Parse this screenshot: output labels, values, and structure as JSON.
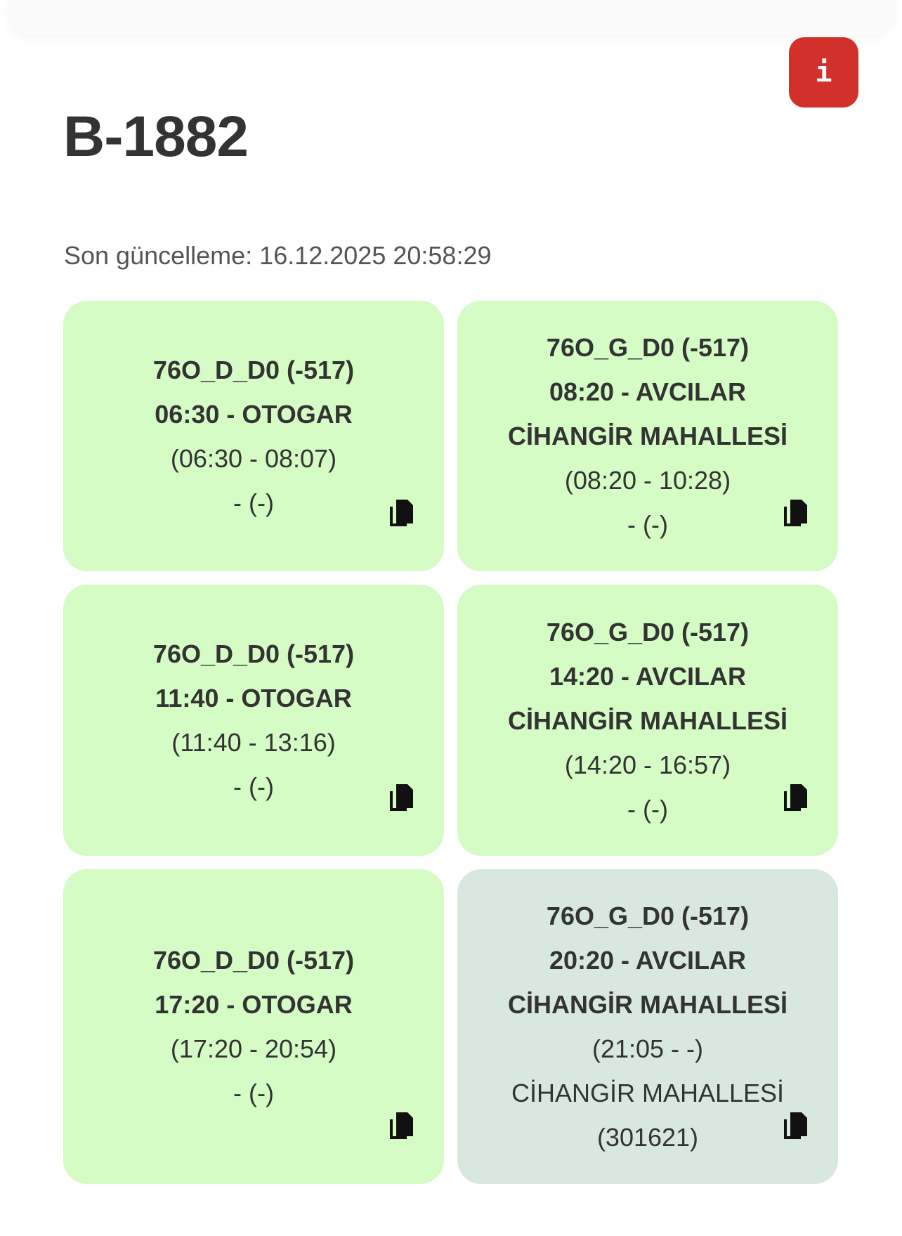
{
  "header": {
    "title": "B-1882",
    "info_icon": "info-icon",
    "info_color": "#d2302b"
  },
  "updated": {
    "label": "Son güncelleme:",
    "value": "16.12.2025 20:58:29"
  },
  "cards": [
    {
      "route": "76O_D_D0 (-517)",
      "departure": "06:30 - OTOGAR",
      "destination": "",
      "times": "(06:30 - 08:07)",
      "location": "- (-)",
      "stop": "",
      "status": "completed"
    },
    {
      "route": "76O_G_D0 (-517)",
      "departure": "08:20 - AVCILAR",
      "destination": "CİHANGİR MAHALLESİ",
      "times": "(08:20 - 10:28)",
      "location": "- (-)",
      "stop": "",
      "status": "completed"
    },
    {
      "route": "76O_D_D0 (-517)",
      "departure": "11:40 - OTOGAR",
      "destination": "",
      "times": "(11:40 - 13:16)",
      "location": "- (-)",
      "stop": "",
      "status": "completed"
    },
    {
      "route": "76O_G_D0 (-517)",
      "departure": "14:20 - AVCILAR",
      "destination": "CİHANGİR MAHALLESİ",
      "times": "(14:20 - 16:57)",
      "location": "- (-)",
      "stop": "",
      "status": "completed"
    },
    {
      "route": "76O_D_D0 (-517)",
      "departure": "17:20 - OTOGAR",
      "destination": "",
      "times": "(17:20 - 20:54)",
      "location": "- (-)",
      "stop": "",
      "status": "completed"
    },
    {
      "route": "76O_G_D0 (-517)",
      "departure": "20:20 - AVCILAR",
      "destination": "CİHANGİR MAHALLESİ",
      "times": "(21:05 - -)",
      "location": "CİHANGİR MAHALLESİ",
      "stop": "(301621)",
      "status": "active"
    }
  ],
  "colors": {
    "completed": "#d5fcc5",
    "active": "#d9e8df"
  },
  "copy_icon": "copy-icon"
}
